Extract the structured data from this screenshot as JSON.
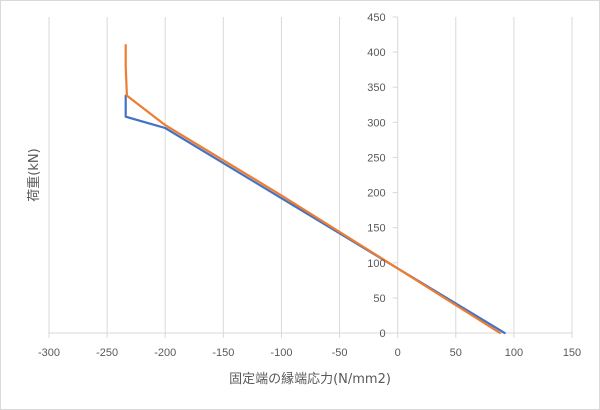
{
  "chart_data": {
    "type": "line",
    "title": "",
    "xlabel": "固定端の縁端応力(N/mm2)",
    "ylabel": "荷重(kN)",
    "xlim": [
      -300,
      150
    ],
    "ylim": [
      0,
      450
    ],
    "x_ticks": [
      -300,
      -250,
      -200,
      -150,
      -100,
      -50,
      0,
      50,
      100,
      150
    ],
    "y_ticks": [
      0,
      50,
      100,
      150,
      200,
      250,
      300,
      350,
      400,
      450
    ],
    "x_tick_labels": [
      "-300",
      "-250",
      "-200",
      "-150",
      "-100",
      "-50",
      "0",
      "50",
      "100",
      "150"
    ],
    "y_tick_labels": [
      "0",
      "50",
      "100",
      "150",
      "200",
      "250",
      "300",
      "350",
      "400",
      "450"
    ],
    "grid": "vertical",
    "legend": "none",
    "series": [
      {
        "color": "#4472c4",
        "x": [
          92,
          0,
          -100,
          -200,
          -234,
          -234
        ],
        "y": [
          0,
          92,
          192,
          292,
          308,
          338
        ]
      },
      {
        "color": "#ed7d31",
        "x": [
          88,
          0,
          -100,
          -200,
          -233,
          -234,
          -234
        ],
        "y": [
          0,
          92,
          196,
          296,
          338,
          380,
          410
        ]
      }
    ]
  }
}
